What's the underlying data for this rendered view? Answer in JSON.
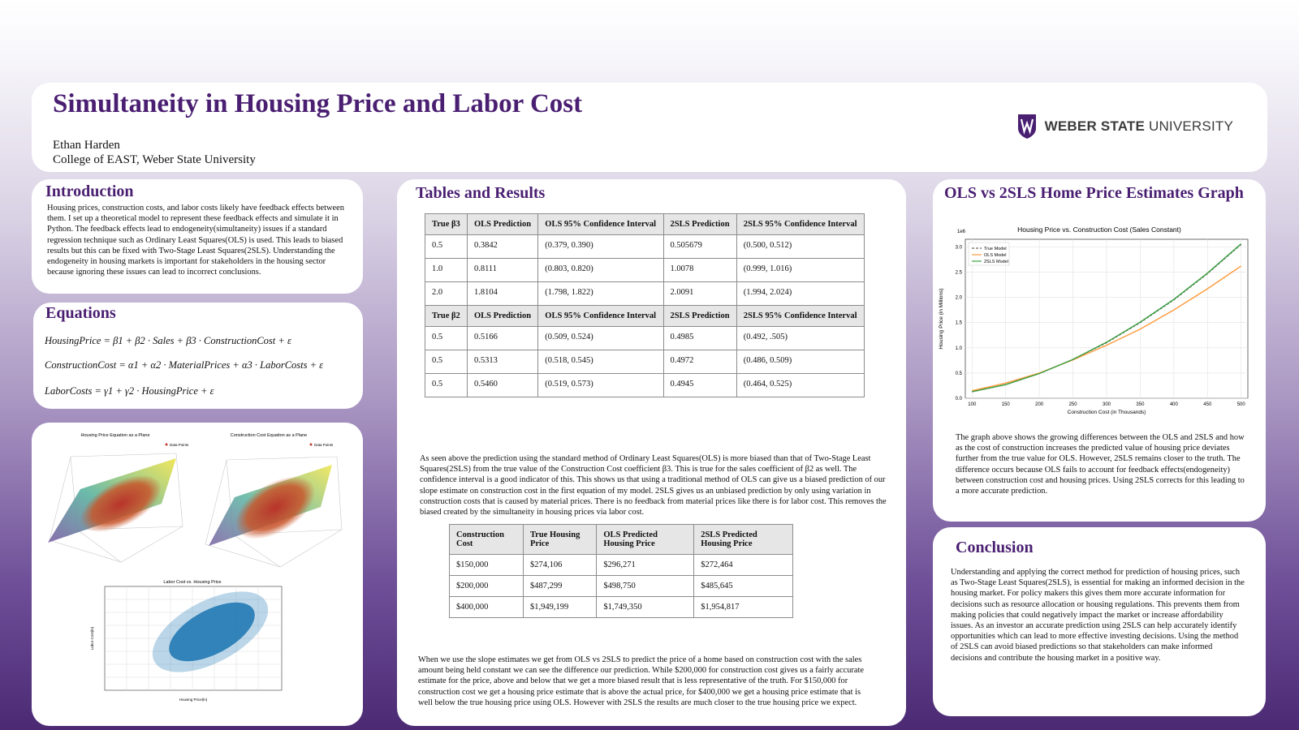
{
  "header": {
    "title": "Simultaneity in Housing Price and Labor Cost",
    "author": "Ethan Harden",
    "affiliation": "College of EAST, Weber State University",
    "logo_bold": "WEBER STATE",
    "logo_rest": " UNIVERSITY",
    "logo_icon": "weber-state-shield-icon"
  },
  "intro": {
    "heading": "Introduction",
    "text": "Housing prices, construction costs, and labor costs likely have feedback effects between them. I set up a theoretical model to represent these feedback effects and simulate it in Python. The feedback effects lead to endogeneity(simultaneity) issues if a standard regression technique such as Ordinary Least Squares(OLS) is used. This leads to biased results but this can be fixed with Two-Stage Least Squares(2SLS). Understanding the endogeneity in housing markets is important for stakeholders in the housing sector because ignoring these issues can lead to incorrect conclusions."
  },
  "equations": {
    "heading": "Equations",
    "eq1": "HousingPrice = β1 + β2 · Sales + β3 · ConstructionCost + ε",
    "eq2": "ConstructionCost = α1 + α2 · MaterialPrices + α3 · LaborCosts + ε",
    "eq3": "LaborCosts = γ1 + γ2 · HousingPrice + ε"
  },
  "figures": {
    "fig1_title": "Housing Price Equation as a Plane",
    "fig2_title": "Construction Cost Equation as a Plane",
    "fig3_title": "Labor Cost vs. Housing Price",
    "legend": "Data Points",
    "fig3_xlabel": "Housing Price(ln)",
    "fig3_ylabel": "Labor Cost(ln)"
  },
  "tables_section": {
    "heading": "Tables and Results",
    "table1": {
      "header_a": [
        "True β3",
        "OLS Prediction",
        "OLS 95% Confidence Interval",
        "2SLS Prediction",
        "2SLS 95% Confidence Interval"
      ],
      "rows_a": [
        [
          "0.5",
          "0.3842",
          "(0.379, 0.390)",
          "0.505679",
          "(0.500, 0.512)"
        ],
        [
          "1.0",
          "0.8111",
          "(0.803, 0.820)",
          "1.0078",
          "(0.999, 1.016)"
        ],
        [
          "2.0",
          "1.8104",
          "(1.798, 1.822)",
          "2.0091",
          "(1.994, 2.024)"
        ]
      ],
      "header_b": [
        "True β2",
        "OLS Prediction",
        "OLS 95% Confidence Interval",
        "2SLS Prediction",
        "2SLS 95% Confidence Interval"
      ],
      "rows_b": [
        [
          "0.5",
          "0.5166",
          "(0.509, 0.524)",
          "0.4985",
          "(0.492, .505)"
        ],
        [
          "0.5",
          "0.5313",
          "(0.518, 0.545)",
          "0.4972",
          "(0.486, 0.509)"
        ],
        [
          "0.5",
          "0.5460",
          "(0.519, 0.573)",
          "0.4945",
          "(0.464, 0.525)"
        ]
      ]
    },
    "para1": "As seen above the prediction using the standard method of Ordinary Least Squares(OLS) is more biased than that of Two-Stage Least Squares(2SLS) from the true value of the Construction Cost coefficient β3. This is true for the sales coefficient of β2 as well. The confidence interval is a good indicator of this. This shows us that using a traditional method of OLS can give us a biased prediction of our slope estimate on construction cost in the first equation of my model. 2SLS gives us an unbiased prediction by only using variation in construction costs that is caused by material prices. There is no feedback from material prices like there is for labor cost. This removes the biased created by the simultaneity in housing prices via labor cost.",
    "table2": {
      "header": [
        "Construction Cost",
        "True Housing Price",
        "OLS Predicted Housing Price",
        "2SLS Predicted Housing Price"
      ],
      "rows": [
        [
          "$150,000",
          "$274,106",
          "$296,271",
          "$272,464"
        ],
        [
          "$200,000",
          "$487,299",
          "$498,750",
          "$485,645"
        ],
        [
          "$400,000",
          "$1,949,199",
          "$1,749,350",
          "$1,954,817"
        ]
      ]
    },
    "para2": "When we use the slope estimates we get from OLS vs 2SLS to predict the price of a home based on construction cost with the sales amount being held constant we can see the difference our prediction. While $200,000 for construction cost gives us a fairly accurate estimate for the price, above and below that we get a more biased result that is less representative of the truth. For $150,000 for construction cost we get a housing price estimate that is above the actual price, for $400,000 we get a housing price estimate that is well below the true housing price using OLS. However with 2SLS the results are much closer to the true housing price we expect."
  },
  "graph_section": {
    "heading": "OLS vs 2SLS Home Price Estimates Graph",
    "text": "The graph above shows the growing differences between the OLS and 2SLS and how as the cost of construction increases the predicted value of housing price deviates further from the true value for OLS. However, 2SLS remains closer to the truth. The difference occurs because OLS fails to account for feedback effects(endogeneity) between construction cost and housing prices. Using 2SLS corrects for this leading to a more accurate prediction."
  },
  "chart_data": {
    "type": "line",
    "title": "Housing Price vs. Construction Cost (Sales Constant)",
    "xlabel": "Construction Cost (in Thousands)",
    "ylabel": "Housing Price (in Millions)",
    "y_offset_label": "1e6",
    "xlim": [
      90,
      510
    ],
    "ylim": [
      0,
      3.15
    ],
    "xticks": [
      100,
      150,
      200,
      250,
      300,
      350,
      400,
      450,
      500
    ],
    "yticks": [
      0.0,
      0.5,
      1.0,
      1.5,
      2.0,
      2.5,
      3.0
    ],
    "grid": true,
    "legend": "top-left",
    "x": [
      100,
      150,
      200,
      250,
      300,
      350,
      400,
      450,
      500
    ],
    "series": [
      {
        "name": "True Model",
        "color": "#666666",
        "dashed": true,
        "values": [
          0.13,
          0.27,
          0.49,
          0.77,
          1.1,
          1.5,
          1.95,
          2.47,
          3.05
        ]
      },
      {
        "name": "OLS Model",
        "color": "#ff9a3c",
        "dashed": false,
        "values": [
          0.15,
          0.3,
          0.5,
          0.76,
          1.05,
          1.37,
          1.75,
          2.17,
          2.62
        ]
      },
      {
        "name": "2SLS Model",
        "color": "#3aa040",
        "dashed": false,
        "values": [
          0.13,
          0.27,
          0.49,
          0.77,
          1.11,
          1.51,
          1.96,
          2.48,
          3.06
        ]
      }
    ]
  },
  "conclusion": {
    "heading": "Conclusion",
    "text": "Understanding and applying the correct method for prediction of housing prices, such as Two-Stage Least Squares(2SLS), is essential for making an informed decision in the housing market. For policy makers this gives them more accurate information for decisions such as resource allocation or housing regulations. This prevents them from making policies that could negatively impact the market or increase affordability issues. As an investor an accurate prediction using 2SLS can help accurately identify opportunities which can lead to more effective investing decisions. Using the method of 2SLS can avoid biased predictions so that stakeholders can make informed decisions and contribute the housing market in a positive way."
  }
}
